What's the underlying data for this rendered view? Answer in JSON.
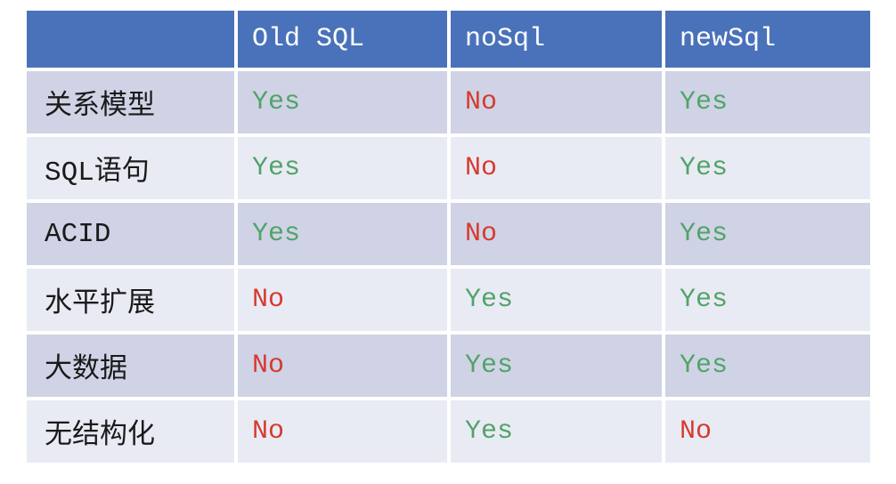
{
  "chart_data": {
    "type": "table",
    "title": "",
    "columns": [
      "",
      "Old SQL",
      "noSql",
      "newSql"
    ],
    "rows": [
      {
        "label": "关系模型",
        "values": [
          "Yes",
          "No",
          "Yes"
        ]
      },
      {
        "label": "SQL语句",
        "values": [
          "Yes",
          "No",
          "Yes"
        ]
      },
      {
        "label": "ACID",
        "values": [
          "Yes",
          "No",
          "Yes"
        ]
      },
      {
        "label": "水平扩展",
        "values": [
          "No",
          "Yes",
          "Yes"
        ]
      },
      {
        "label": "大数据",
        "values": [
          "No",
          "Yes",
          "Yes"
        ]
      },
      {
        "label": "无结构化",
        "values": [
          "No",
          "Yes",
          "No"
        ]
      }
    ],
    "layout": {
      "header_position": "top",
      "row_striping": "odd-rows-dark",
      "grid": "white-gaps-between-cells"
    }
  },
  "colors": {
    "header_bg": "#4a72ba",
    "header_text": "#ffffff",
    "row_dark": "#cfd3e5",
    "row_light": "#e9ebf4",
    "yes_green": "#52a369",
    "no_red": "#d63a2e",
    "label_text": "#1a1a1a",
    "background": "#ffffff"
  }
}
